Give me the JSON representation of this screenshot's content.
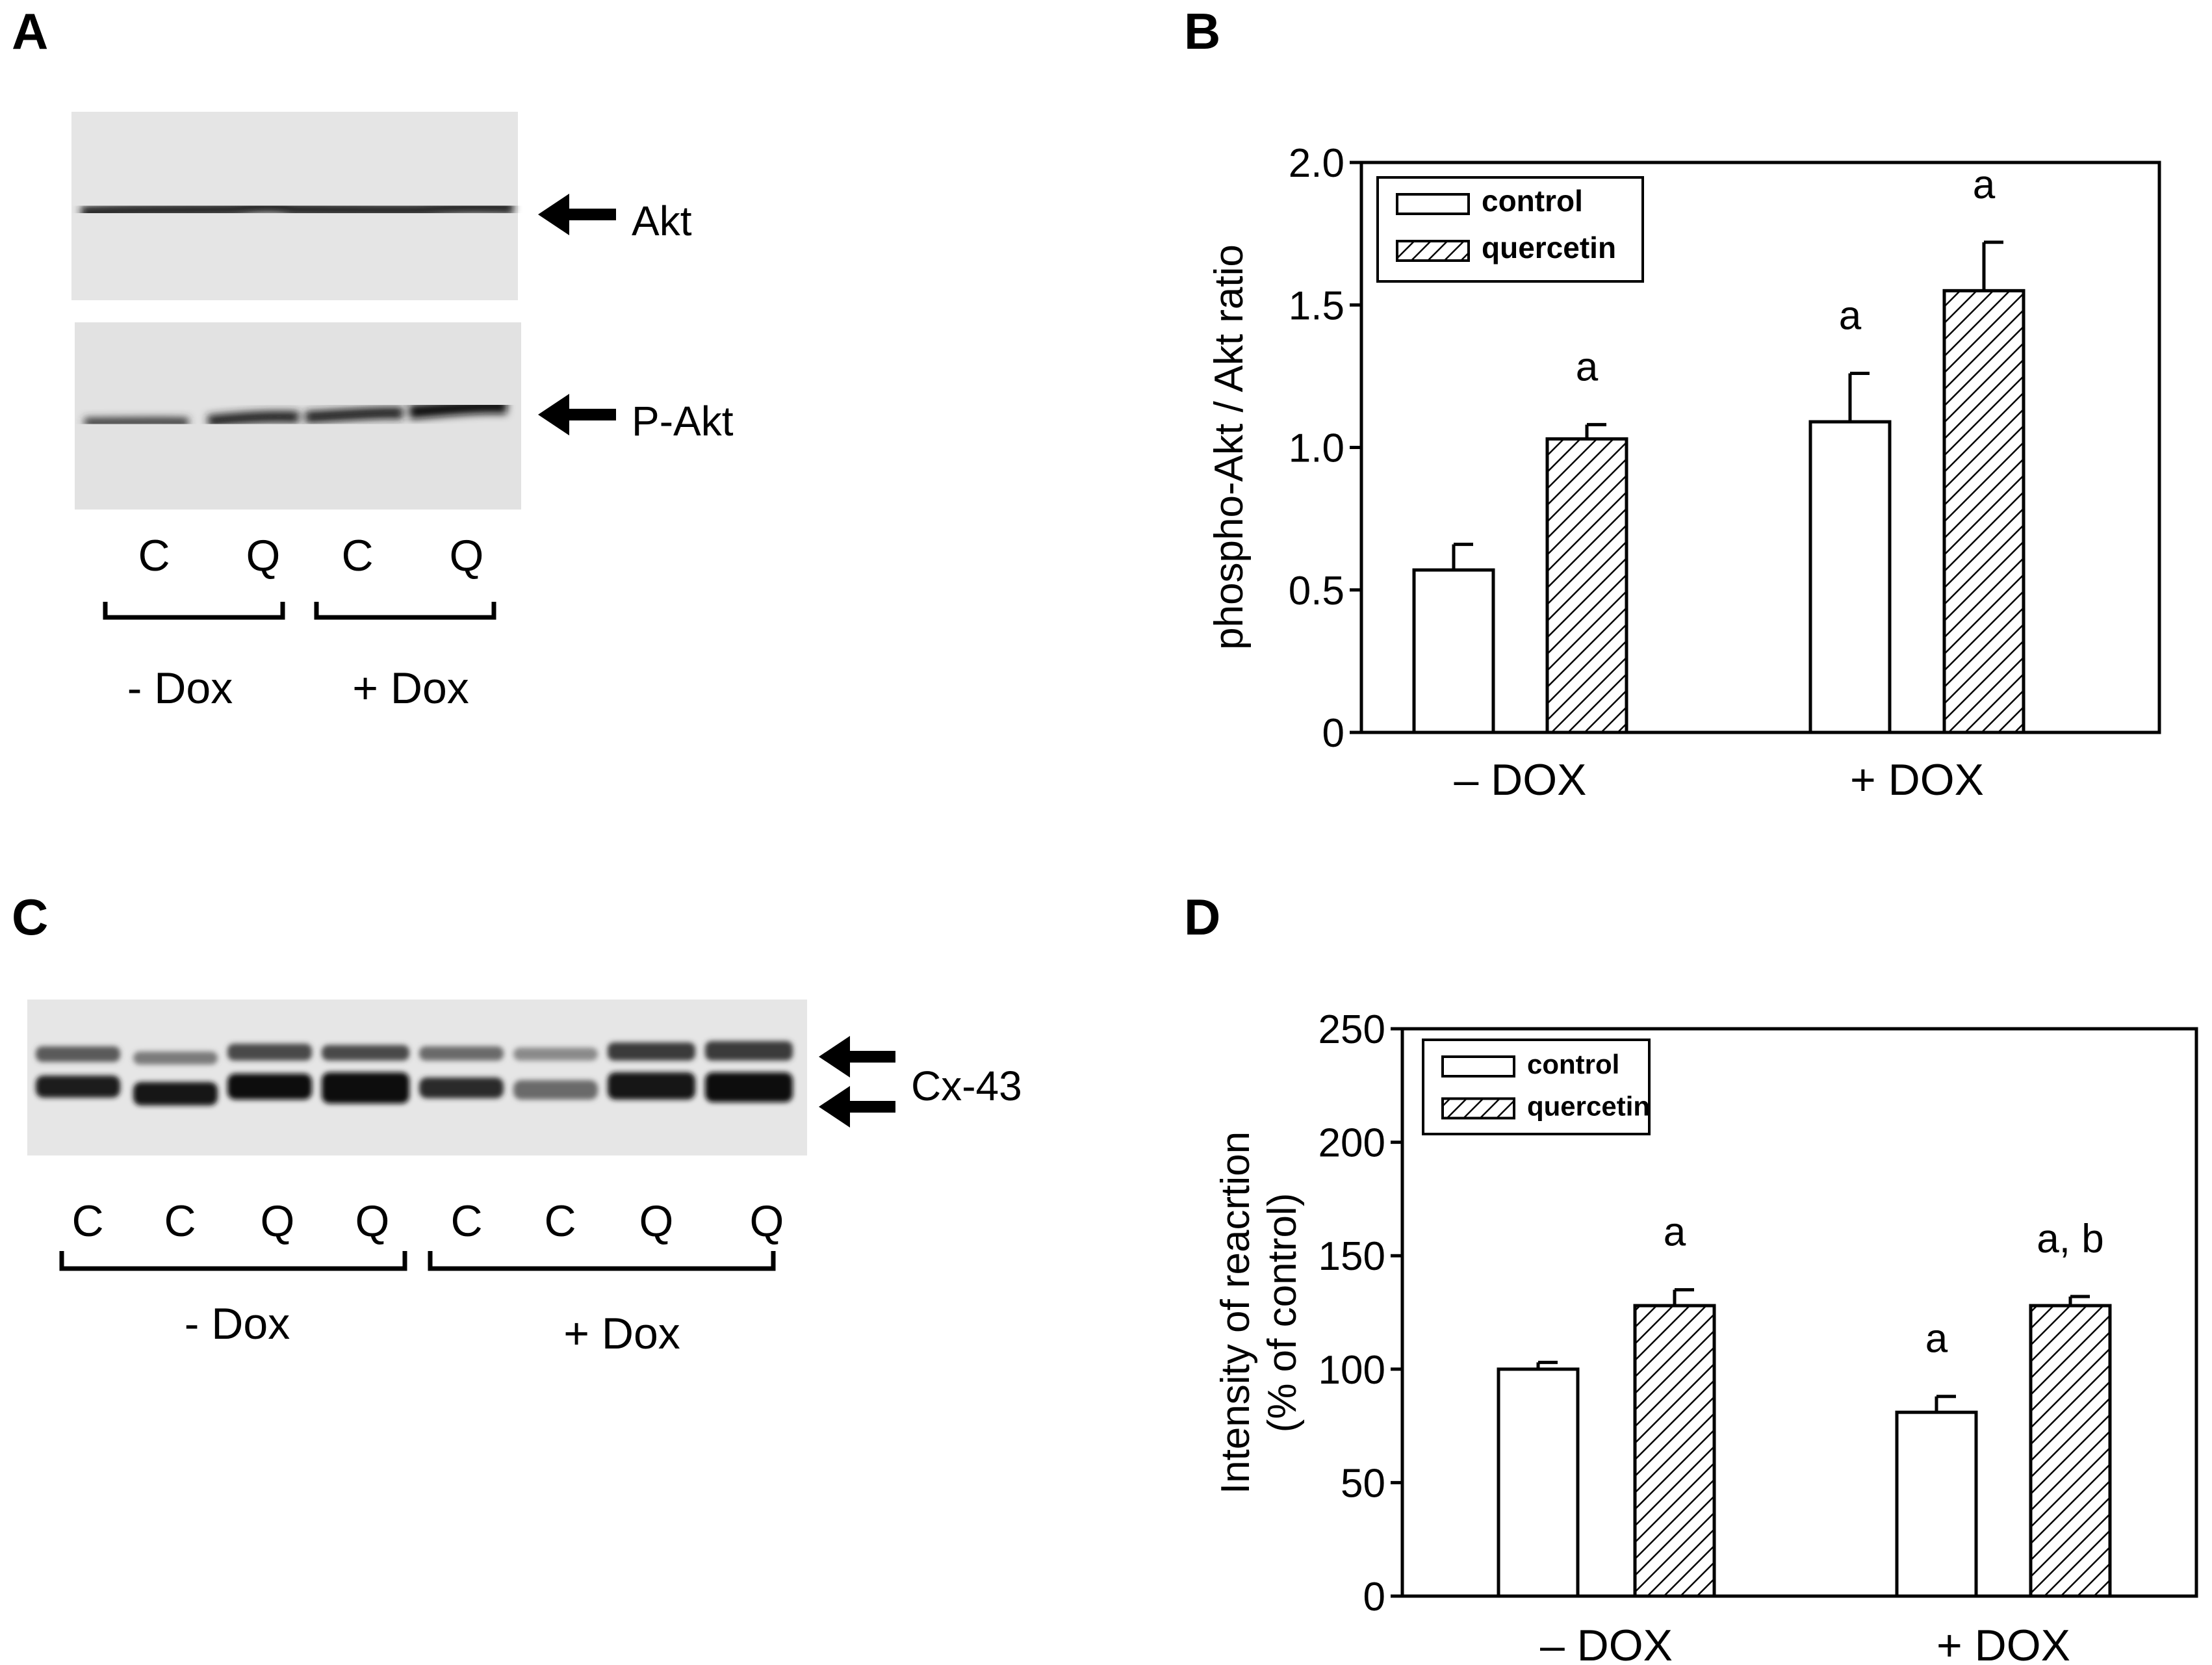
{
  "panels": {
    "A": {
      "label": "A",
      "band_labels": [
        "Akt",
        "P-Akt"
      ],
      "lanes": [
        "C",
        "Q",
        "C",
        "Q"
      ],
      "groups": [
        "- Dox",
        "+ Dox"
      ]
    },
    "C": {
      "label": "C",
      "band_label": "Cx-43",
      "lanes": [
        "C",
        "C",
        "Q",
        "Q",
        "C",
        "C",
        "Q",
        "Q"
      ],
      "groups": [
        "- Dox",
        "+ Dox"
      ]
    }
  },
  "chart_data": [
    {
      "panel": "B",
      "type": "bar",
      "title": "",
      "xlabel": "",
      "ylabel": "phospho-Akt / Akt ratio",
      "categories": [
        "– DOX",
        "+ DOX"
      ],
      "ylim": [
        0,
        2.0
      ],
      "yticks": [
        0,
        0.5,
        1.0,
        1.5,
        2.0
      ],
      "ytick_labels": [
        "0",
        "0.5",
        "1.0",
        "1.5",
        "2.0"
      ],
      "series": [
        {
          "name": "control",
          "values": [
            0.57,
            1.09
          ],
          "errors": [
            0.09,
            0.17
          ],
          "annotations": [
            "",
            "a"
          ]
        },
        {
          "name": "quercetin",
          "values": [
            1.03,
            1.55
          ],
          "errors": [
            0.05,
            0.17
          ],
          "annotations": [
            "a",
            "a"
          ]
        }
      ],
      "legend": "top-left",
      "grid": false
    },
    {
      "panel": "D",
      "type": "bar",
      "title": "",
      "xlabel": "",
      "ylabel": [
        "Intensity of reacrtion",
        "(% of control)"
      ],
      "categories": [
        "– DOX",
        "+ DOX"
      ],
      "ylim": [
        0,
        250
      ],
      "yticks": [
        0,
        50,
        100,
        150,
        200,
        250
      ],
      "ytick_labels": [
        "0",
        "50",
        "100",
        "150",
        "200",
        "250"
      ],
      "series": [
        {
          "name": "control",
          "values": [
            100,
            81
          ],
          "errors": [
            3,
            7
          ],
          "annotations": [
            "",
            "a"
          ]
        },
        {
          "name": "quercetin",
          "values": [
            128,
            128
          ],
          "errors": [
            7,
            4
          ],
          "annotations": [
            "a",
            "a, b"
          ]
        }
      ],
      "legend": "top-left",
      "grid": false
    }
  ],
  "colors": {
    "ink": "#000000",
    "paper": "#ffffff",
    "blot_light": "#e7e7e7",
    "blot_dark": "#1e1e1e"
  }
}
